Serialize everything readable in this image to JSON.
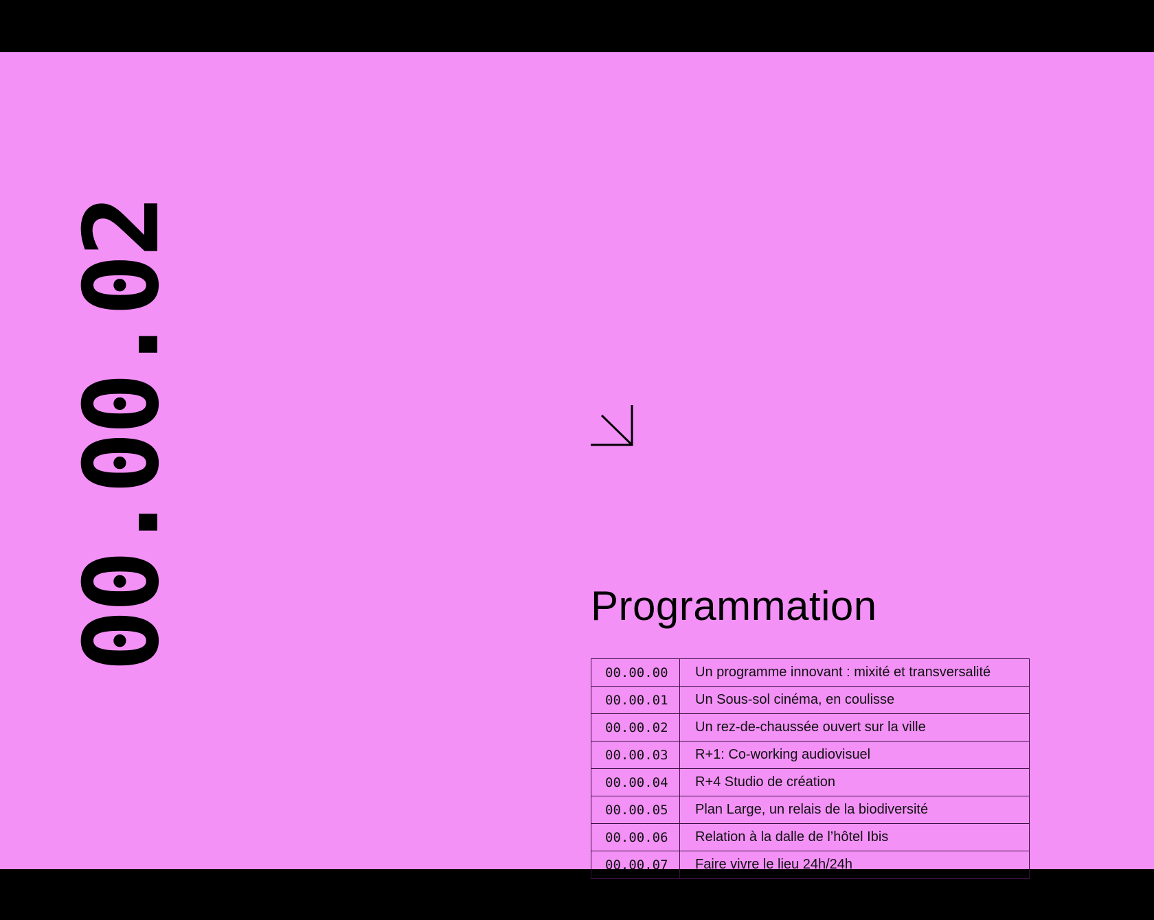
{
  "colors": {
    "background": "#f391f7",
    "frame": "#000000",
    "text": "#000000"
  },
  "section_number": "00.00.02",
  "arrow_icon": "arrow-down-right",
  "title": "Programmation",
  "rows": [
    {
      "code": "00.00.00",
      "label": "Un programme innovant : mixité et transversalité"
    },
    {
      "code": "00.00.01",
      "label": "Un Sous-sol cinéma, en coulisse"
    },
    {
      "code": "00.00.02",
      "label": "Un rez-de-chaussée ouvert sur la ville"
    },
    {
      "code": "00.00.03",
      "label": "R+1: Co-working audiovisuel"
    },
    {
      "code": "00.00.04",
      "label": "R+4 Studio de création"
    },
    {
      "code": "00.00.05",
      "label": "Plan Large, un relais de la biodiversité"
    },
    {
      "code": "00.00.06",
      "label": "Relation à la dalle de l’hôtel Ibis"
    },
    {
      "code": "00.00.07",
      "label": "Faire vivre le lieu 24h/24h"
    }
  ]
}
